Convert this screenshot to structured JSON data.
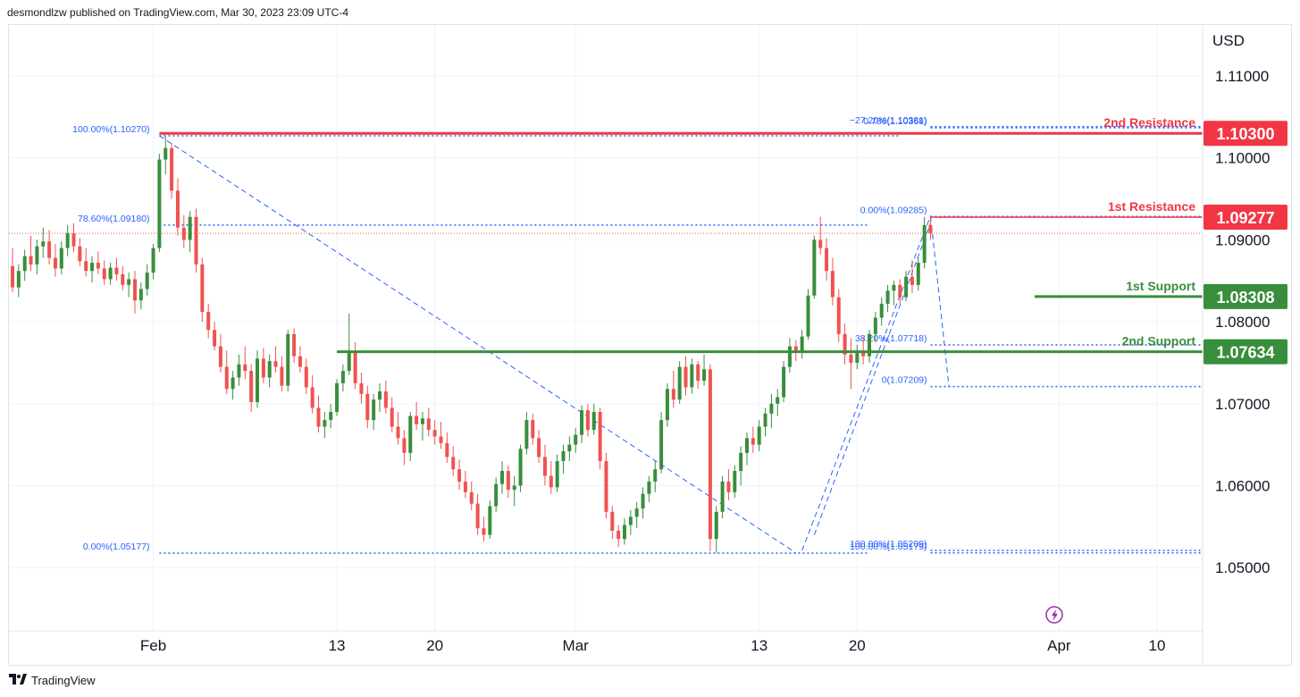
{
  "header": {
    "published": "desmondlzw published on TradingView.com, Mar 30, 2023 23:09 UTC-4"
  },
  "footer": {
    "brand": "TradingView",
    "brand_icon": "tradingview-logo-icon"
  },
  "currency": "USD",
  "colors": {
    "up": "#26a69a",
    "up_body": "#388e3c",
    "down": "#ef5350",
    "resistance": "#f23645",
    "support": "#388e3c",
    "fib": "#2962ff",
    "grid": "#f0f3fa"
  },
  "chart_data": {
    "type": "candlestick",
    "title": "",
    "symbol_currency": "USD",
    "ylim": [
      1.0435,
      1.1165
    ],
    "y_ticks": [
      "1.05000",
      "1.06000",
      "1.07000",
      "1.08000",
      "1.09000",
      "1.10000",
      "1.11000"
    ],
    "y_tick_values": [
      1.05,
      1.06,
      1.07,
      1.08,
      1.09,
      1.1,
      1.11
    ],
    "x_ticks": [
      {
        "label": "Feb",
        "bar": 23
      },
      {
        "label": "13",
        "bar": 53
      },
      {
        "label": "20",
        "bar": 69
      },
      {
        "label": "Mar",
        "bar": 92
      },
      {
        "label": "13",
        "bar": 122
      },
      {
        "label": "20",
        "bar": 138
      },
      {
        "label": "Apr",
        "bar": 171
      },
      {
        "label": "10",
        "bar": 187
      }
    ],
    "levels": [
      {
        "label": "2nd Resistance",
        "value": 1.103,
        "tag": "1.10300",
        "kind": "resistance"
      },
      {
        "label": "1st Resistance",
        "value": 1.09277,
        "tag": "1.09277",
        "kind": "resistance"
      },
      {
        "label": "1st Support",
        "value": 1.08308,
        "tag": "1.08308",
        "kind": "support"
      },
      {
        "label": "2nd Support",
        "value": 1.07634,
        "tag": "1.07634",
        "kind": "support"
      }
    ],
    "fib_labels": [
      {
        "text": "100.00%(1.10270)",
        "value": 1.1027,
        "bar": 0
      },
      {
        "text": "78.60%(1.09180)",
        "value": 1.0918,
        "bar": 0
      },
      {
        "text": "0.00%(1.05177)",
        "value": 1.05177,
        "bar": 0
      },
      {
        "text": "−27.20%(1.10381)",
        "value": 1.10381,
        "bar": 113
      },
      {
        "text": "0.786(1.10368)",
        "value": 1.10368,
        "bar": 132
      },
      {
        "text": "0.00%(1.09285)",
        "value": 1.09285,
        "bar": 113
      },
      {
        "text": "38.20%(1.07718)",
        "value": 1.07718,
        "bar": 113
      },
      {
        "text": "0(1.07209)",
        "value": 1.07209,
        "bar": 139
      },
      {
        "text": "100.00%(1.05209)",
        "value": 1.05209,
        "bar": 113
      },
      {
        "text": "100.00%(1.05179)",
        "value": 1.05179,
        "bar": 113
      }
    ],
    "candles": [
      [
        1.0868,
        1.089,
        1.0836,
        1.0842
      ],
      [
        1.0842,
        1.087,
        1.083,
        1.0862
      ],
      [
        1.0862,
        1.0888,
        1.085,
        1.088
      ],
      [
        1.088,
        1.0905,
        1.0862,
        1.087
      ],
      [
        1.087,
        1.09,
        1.0858,
        1.0892
      ],
      [
        1.0892,
        1.0915,
        1.0878,
        1.0898
      ],
      [
        1.0898,
        1.0912,
        1.087,
        1.0878
      ],
      [
        1.0878,
        1.0895,
        1.0855,
        1.0865
      ],
      [
        1.0865,
        1.0898,
        1.0858,
        1.089
      ],
      [
        1.089,
        1.0918,
        1.088,
        1.0908
      ],
      [
        1.0908,
        1.092,
        1.0885,
        1.0892
      ],
      [
        1.0892,
        1.0902,
        1.0868,
        1.0874
      ],
      [
        1.0874,
        1.089,
        1.0855,
        1.0862
      ],
      [
        1.0862,
        1.088,
        1.0848,
        1.0872
      ],
      [
        1.0872,
        1.0886,
        1.0858,
        1.0865
      ],
      [
        1.0865,
        1.0875,
        1.0845,
        1.0852
      ],
      [
        1.0852,
        1.0872,
        1.0845,
        1.0866
      ],
      [
        1.0866,
        1.0878,
        1.085,
        1.0858
      ],
      [
        1.0858,
        1.0868,
        1.0838,
        1.0845
      ],
      [
        1.0845,
        1.086,
        1.083,
        1.0852
      ],
      [
        1.0852,
        1.0862,
        1.081,
        1.0826
      ],
      [
        1.0826,
        1.0848,
        1.0815,
        1.084
      ],
      [
        1.084,
        1.087,
        1.0832,
        1.086
      ],
      [
        1.086,
        1.0895,
        1.0852,
        1.089
      ],
      [
        1.089,
        1.1005,
        1.0885,
        1.0998
      ],
      [
        1.0998,
        1.1027,
        1.098,
        1.1012
      ],
      [
        1.1012,
        1.1018,
        1.095,
        1.096
      ],
      [
        1.096,
        1.0975,
        1.0905,
        1.0915
      ],
      [
        1.0915,
        1.093,
        1.089,
        1.09
      ],
      [
        1.09,
        1.0935,
        1.0885,
        1.0928
      ],
      [
        1.0928,
        1.0938,
        1.086,
        1.087
      ],
      [
        1.087,
        1.0878,
        1.08,
        1.0812
      ],
      [
        1.0812,
        1.0822,
        1.078,
        1.079
      ],
      [
        1.079,
        1.08,
        1.0765,
        1.077
      ],
      [
        1.077,
        1.0785,
        1.0738,
        1.0745
      ],
      [
        1.0745,
        1.0765,
        1.0712,
        1.0718
      ],
      [
        1.0718,
        1.074,
        1.0705,
        1.0732
      ],
      [
        1.0732,
        1.076,
        1.0722,
        1.0748
      ],
      [
        1.0748,
        1.077,
        1.073,
        1.074
      ],
      [
        1.074,
        1.0748,
        1.069,
        1.0702
      ],
      [
        1.0702,
        1.0765,
        1.0695,
        1.0755
      ],
      [
        1.0755,
        1.0768,
        1.0725,
        1.0732
      ],
      [
        1.0732,
        1.076,
        1.072,
        1.0752
      ],
      [
        1.0752,
        1.077,
        1.0738,
        1.0745
      ],
      [
        1.0745,
        1.0758,
        1.0715,
        1.0722
      ],
      [
        1.0722,
        1.079,
        1.0715,
        1.0785
      ],
      [
        1.0785,
        1.0792,
        1.075,
        1.0758
      ],
      [
        1.0758,
        1.077,
        1.0738,
        1.0745
      ],
      [
        1.0745,
        1.0755,
        1.0712,
        1.072
      ],
      [
        1.072,
        1.0735,
        1.0688,
        1.0695
      ],
      [
        1.0695,
        1.071,
        1.0665,
        1.0672
      ],
      [
        1.0672,
        1.069,
        1.0658,
        1.068
      ],
      [
        1.068,
        1.07,
        1.067,
        1.069
      ],
      [
        1.069,
        1.073,
        1.0685,
        1.0725
      ],
      [
        1.0725,
        1.0748,
        1.0715,
        1.074
      ],
      [
        1.074,
        1.081,
        1.0735,
        1.0762
      ],
      [
        1.0762,
        1.0775,
        1.0718,
        1.0725
      ],
      [
        1.0725,
        1.0738,
        1.07,
        1.0712
      ],
      [
        1.0712,
        1.0722,
        1.067,
        1.068
      ],
      [
        1.068,
        1.0712,
        1.0668,
        1.0705
      ],
      [
        1.0705,
        1.0725,
        1.069,
        1.0715
      ],
      [
        1.0715,
        1.0728,
        1.0688,
        1.0695
      ],
      [
        1.0695,
        1.0708,
        1.0665,
        1.0672
      ],
      [
        1.0672,
        1.069,
        1.065,
        1.0658
      ],
      [
        1.0658,
        1.0668,
        1.0625,
        1.064
      ],
      [
        1.064,
        1.069,
        1.063,
        1.0685
      ],
      [
        1.0685,
        1.0702,
        1.0668,
        1.0675
      ],
      [
        1.0675,
        1.069,
        1.0655,
        1.0682
      ],
      [
        1.0682,
        1.0695,
        1.066,
        1.0668
      ],
      [
        1.0668,
        1.068,
        1.065,
        1.066
      ],
      [
        1.066,
        1.0678,
        1.0645,
        1.0652
      ],
      [
        1.0652,
        1.0665,
        1.0628,
        1.0635
      ],
      [
        1.0635,
        1.0648,
        1.0612,
        1.062
      ],
      [
        1.062,
        1.0632,
        1.0595,
        1.0605
      ],
      [
        1.0605,
        1.0618,
        1.0585,
        1.0592
      ],
      [
        1.0592,
        1.0605,
        1.057,
        1.0578
      ],
      [
        1.0578,
        1.059,
        1.054,
        1.0548
      ],
      [
        1.0548,
        1.0562,
        1.0532,
        1.054
      ],
      [
        1.054,
        1.0582,
        1.0535,
        1.0575
      ],
      [
        1.0575,
        1.061,
        1.0568,
        1.0602
      ],
      [
        1.0602,
        1.063,
        1.059,
        1.0618
      ],
      [
        1.0618,
        1.0625,
        1.0585,
        1.0595
      ],
      [
        1.0595,
        1.0612,
        1.0575,
        1.06
      ],
      [
        1.06,
        1.065,
        1.0592,
        1.0645
      ],
      [
        1.0645,
        1.069,
        1.0638,
        1.068
      ],
      [
        1.068,
        1.0688,
        1.065,
        1.0658
      ],
      [
        1.0658,
        1.0668,
        1.0628,
        1.0635
      ],
      [
        1.0635,
        1.065,
        1.06,
        1.0612
      ],
      [
        1.0612,
        1.063,
        1.059,
        1.0598
      ],
      [
        1.0598,
        1.0638,
        1.0592,
        1.063
      ],
      [
        1.063,
        1.065,
        1.0615,
        1.0642
      ],
      [
        1.0642,
        1.066,
        1.063,
        1.065
      ],
      [
        1.065,
        1.067,
        1.064,
        1.0662
      ],
      [
        1.0662,
        1.0698,
        1.0652,
        1.0692
      ],
      [
        1.0692,
        1.07,
        1.066,
        1.0668
      ],
      [
        1.0668,
        1.07,
        1.0662,
        1.069
      ],
      [
        1.069,
        1.0695,
        1.062,
        1.063
      ],
      [
        1.063,
        1.064,
        1.056,
        1.0568
      ],
      [
        1.0568,
        1.0575,
        1.0535,
        1.0545
      ],
      [
        1.0545,
        1.0552,
        1.0525,
        1.0535
      ],
      [
        1.0535,
        1.056,
        1.0528,
        1.0552
      ],
      [
        1.0552,
        1.057,
        1.054,
        1.0562
      ],
      [
        1.0562,
        1.058,
        1.0548,
        1.0572
      ],
      [
        1.0572,
        1.0598,
        1.056,
        1.059
      ],
      [
        1.059,
        1.0612,
        1.058,
        1.0605
      ],
      [
        1.0605,
        1.063,
        1.0592,
        1.062
      ],
      [
        1.062,
        1.069,
        1.0615,
        1.068
      ],
      [
        1.068,
        1.0725,
        1.0672,
        1.0718
      ],
      [
        1.0718,
        1.074,
        1.0695,
        1.0705
      ],
      [
        1.0705,
        1.0752,
        1.07,
        1.0745
      ],
      [
        1.0745,
        1.0758,
        1.071,
        1.072
      ],
      [
        1.072,
        1.0755,
        1.0712,
        1.0748
      ],
      [
        1.0748,
        1.0752,
        1.0718,
        1.0728
      ],
      [
        1.0728,
        1.076,
        1.0722,
        1.0742
      ],
      [
        1.0742,
        1.0748,
        1.052,
        1.0535
      ],
      [
        1.0535,
        1.0575,
        1.0518,
        1.0568
      ],
      [
        1.0568,
        1.0612,
        1.056,
        1.0605
      ],
      [
        1.0605,
        1.062,
        1.0582,
        1.0592
      ],
      [
        1.0592,
        1.0625,
        1.0585,
        1.0618
      ],
      [
        1.0618,
        1.0648,
        1.06,
        1.064
      ],
      [
        1.064,
        1.0665,
        1.0625,
        1.0658
      ],
      [
        1.0658,
        1.0672,
        1.064,
        1.065
      ],
      [
        1.065,
        1.068,
        1.0642,
        1.0672
      ],
      [
        1.0672,
        1.0695,
        1.066,
        1.0688
      ],
      [
        1.0688,
        1.0712,
        1.067,
        1.07
      ],
      [
        1.07,
        1.0718,
        1.0685,
        1.0708
      ],
      [
        1.0708,
        1.0752,
        1.0702,
        1.0745
      ],
      [
        1.0745,
        1.078,
        1.0738,
        1.077
      ],
      [
        1.077,
        1.0778,
        1.0752,
        1.0762
      ],
      [
        1.0762,
        1.079,
        1.0755,
        1.0782
      ],
      [
        1.0782,
        1.084,
        1.0778,
        1.0832
      ],
      [
        1.0832,
        1.0905,
        1.0828,
        1.09
      ],
      [
        1.09,
        1.0928,
        1.0882,
        1.089
      ],
      [
        1.089,
        1.0902,
        1.085,
        1.0862
      ],
      [
        1.0862,
        1.0878,
        1.082,
        1.083
      ],
      [
        1.083,
        1.084,
        1.0775,
        1.0785
      ],
      [
        1.0785,
        1.0798,
        1.0748,
        1.076
      ],
      [
        1.076,
        1.078,
        1.0718,
        1.075
      ],
      [
        1.075,
        1.0772,
        1.0742,
        1.0765
      ],
      [
        1.0765,
        1.0782,
        1.0748,
        1.0758
      ],
      [
        1.0758,
        1.079,
        1.075,
        1.0785
      ],
      [
        1.0785,
        1.0812,
        1.0775,
        1.0805
      ],
      [
        1.0805,
        1.083,
        1.0795,
        1.0822
      ],
      [
        1.0822,
        1.0845,
        1.0812,
        1.0838
      ],
      [
        1.0838,
        1.085,
        1.082,
        1.0845
      ],
      [
        1.0845,
        1.0852,
        1.0822,
        1.083
      ],
      [
        1.083,
        1.0862,
        1.0825,
        1.0855
      ],
      [
        1.0855,
        1.0875,
        1.0835,
        1.0845
      ],
      [
        1.0845,
        1.0878,
        1.0838,
        1.0872
      ],
      [
        1.0872,
        1.0928,
        1.0865,
        1.0918
      ],
      [
        1.0918,
        1.0928,
        1.09,
        1.0908
      ]
    ]
  }
}
